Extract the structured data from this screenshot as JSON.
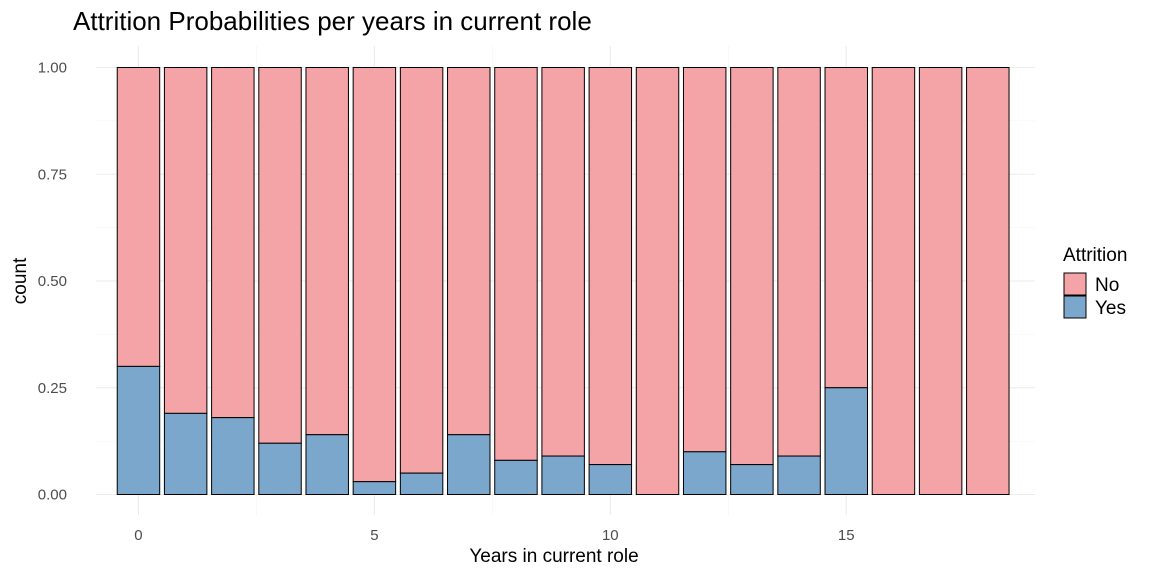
{
  "chart_data": {
    "type": "bar",
    "stacked": true,
    "title": "Attrition Probabilities per years in current role",
    "xlabel": "Years in current role",
    "ylabel": "count",
    "x": [
      0,
      1,
      2,
      3,
      4,
      5,
      6,
      7,
      8,
      9,
      10,
      11,
      12,
      13,
      14,
      15,
      16,
      17,
      18
    ],
    "xlim": [
      -0.9,
      19.0
    ],
    "x_ticks": [
      0,
      5,
      10,
      15
    ],
    "ylim": [
      0,
      1
    ],
    "y_ticks": [
      0.0,
      0.25,
      0.5,
      0.75,
      1.0
    ],
    "y_tick_labels": [
      "0.00",
      "0.25",
      "0.50",
      "0.75",
      "1.00"
    ],
    "series": [
      {
        "name": "No",
        "color": "#f4a3a6",
        "values": [
          0.7,
          0.81,
          0.82,
          0.88,
          0.86,
          0.97,
          0.95,
          0.86,
          0.92,
          0.91,
          0.93,
          1.0,
          0.9,
          0.93,
          0.91,
          0.75,
          1.0,
          1.0,
          1.0
        ]
      },
      {
        "name": "Yes",
        "color": "#7ba7cc",
        "values": [
          0.3,
          0.19,
          0.18,
          0.12,
          0.14,
          0.03,
          0.05,
          0.14,
          0.08,
          0.09,
          0.07,
          0.0,
          0.1,
          0.07,
          0.09,
          0.25,
          0.0,
          0.0,
          0.0
        ]
      }
    ],
    "legend": {
      "title": "Attrition",
      "position": "right",
      "entries": [
        "No",
        "Yes"
      ]
    },
    "grid": true
  }
}
